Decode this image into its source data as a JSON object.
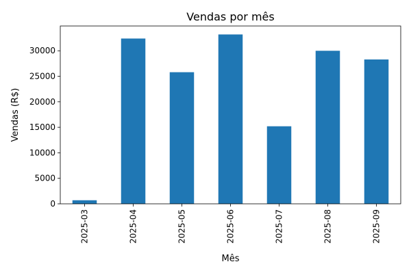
{
  "chart_data": {
    "type": "bar",
    "title": "Vendas por mês",
    "xlabel": "Mês",
    "ylabel": "Vendas (R$)",
    "categories": [
      "2025-03",
      "2025-04",
      "2025-05",
      "2025-06",
      "2025-07",
      "2025-08",
      "2025-09"
    ],
    "values": [
      700,
      32400,
      25800,
      33200,
      15200,
      30000,
      28300
    ],
    "yticks": [
      0,
      5000,
      10000,
      15000,
      20000,
      25000,
      30000
    ],
    "ylim": [
      0,
      34860
    ],
    "bar_color": "#1f77b4",
    "grid": false,
    "legend": "none"
  }
}
